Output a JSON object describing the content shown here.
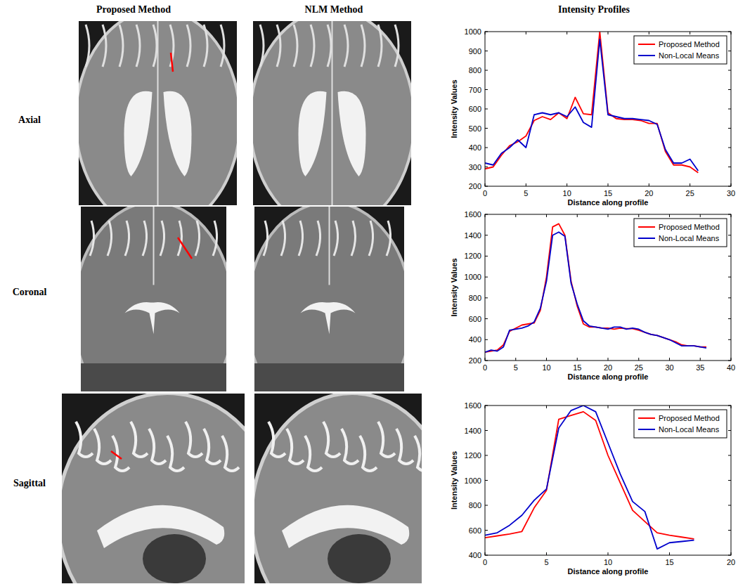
{
  "columns": [
    "Proposed Method",
    "NLM Method",
    "Intensity Profiles"
  ],
  "rows": [
    "Axial",
    "Coronal",
    "Sagittal"
  ],
  "chart_data": [
    {
      "type": "line",
      "x_label": "Distance along profile",
      "y_label": "Intensity Values",
      "x": [
        0,
        1,
        2,
        3,
        4,
        5,
        6,
        7,
        8,
        9,
        10,
        11,
        12,
        13,
        14,
        15,
        16,
        17,
        18,
        19,
        20,
        21,
        22,
        23,
        24,
        25,
        26
      ],
      "series": [
        {
          "name": "Proposed Method",
          "color": "#ff0000",
          "values": [
            290,
            300,
            360,
            410,
            430,
            460,
            540,
            560,
            545,
            580,
            550,
            660,
            575,
            570,
            1000,
            580,
            550,
            545,
            545,
            540,
            525,
            525,
            380,
            310,
            310,
            300,
            270
          ]
        },
        {
          "name": "Non-Local Means",
          "color": "#0000cc",
          "values": [
            320,
            310,
            370,
            400,
            440,
            400,
            570,
            580,
            570,
            580,
            560,
            610,
            530,
            505,
            960,
            570,
            560,
            550,
            550,
            545,
            540,
            520,
            390,
            320,
            320,
            340,
            280
          ]
        }
      ],
      "xlim": [
        0,
        30
      ],
      "xticks": [
        0,
        5,
        10,
        15,
        20,
        25,
        30
      ],
      "ylim": [
        200,
        1000
      ],
      "yticks": [
        200,
        300,
        400,
        500,
        600,
        700,
        800,
        900,
        1000
      ],
      "grid": false,
      "legend": "northeast"
    },
    {
      "type": "line",
      "x_label": "Distance along profile",
      "y_label": "Intensity Values",
      "x": [
        0,
        1,
        2,
        3,
        4,
        5,
        6,
        7,
        8,
        9,
        10,
        11,
        12,
        13,
        14,
        15,
        16,
        17,
        18,
        19,
        20,
        21,
        22,
        23,
        24,
        25,
        26,
        27,
        28,
        29,
        30,
        31,
        32,
        33,
        34,
        35,
        36
      ],
      "series": [
        {
          "name": "Proposed Method",
          "color": "#ff0000",
          "values": [
            280,
            290,
            300,
            350,
            480,
            510,
            540,
            550,
            560,
            680,
            1000,
            1480,
            1510,
            1400,
            960,
            720,
            550,
            520,
            520,
            510,
            510,
            500,
            510,
            505,
            505,
            490,
            470,
            450,
            440,
            420,
            400,
            380,
            350,
            340,
            340,
            330,
            330
          ]
        },
        {
          "name": "Non-Local Means",
          "color": "#0000cc",
          "values": [
            280,
            300,
            290,
            330,
            490,
            500,
            510,
            530,
            570,
            700,
            960,
            1400,
            1430,
            1390,
            940,
            740,
            580,
            530,
            520,
            510,
            500,
            520,
            520,
            500,
            510,
            500,
            470,
            450,
            440,
            420,
            400,
            370,
            340,
            340,
            340,
            330,
            320
          ]
        }
      ],
      "xlim": [
        0,
        40
      ],
      "xticks": [
        0,
        5,
        10,
        15,
        20,
        25,
        30,
        35,
        40
      ],
      "ylim": [
        200,
        1600
      ],
      "yticks": [
        200,
        400,
        600,
        800,
        1000,
        1200,
        1400,
        1600
      ],
      "grid": false,
      "legend": "northeast"
    },
    {
      "type": "line",
      "x_label": "Distance along profile",
      "y_label": "Intensity Values",
      "x": [
        0,
        1,
        2,
        3,
        4,
        5,
        6,
        7,
        8,
        9,
        10,
        11,
        12,
        13,
        14,
        15,
        16,
        17
      ],
      "series": [
        {
          "name": "Proposed Method",
          "color": "#ff0000",
          "values": [
            540,
            555,
            570,
            590,
            780,
            920,
            1490,
            1520,
            1550,
            1480,
            1200,
            980,
            760,
            670,
            580,
            560,
            545,
            530
          ]
        },
        {
          "name": "Non-Local Means",
          "color": "#0000cc",
          "values": [
            560,
            580,
            640,
            720,
            840,
            930,
            1420,
            1560,
            1600,
            1550,
            1300,
            1050,
            830,
            750,
            450,
            500,
            510,
            520
          ]
        }
      ],
      "xlim": [
        0,
        20
      ],
      "xticks": [
        0,
        5,
        10,
        15,
        20
      ],
      "ylim": [
        400,
        1600
      ],
      "yticks": [
        400,
        600,
        800,
        1000,
        1200,
        1400,
        1600
      ],
      "grid": false,
      "legend": "northeast"
    }
  ]
}
